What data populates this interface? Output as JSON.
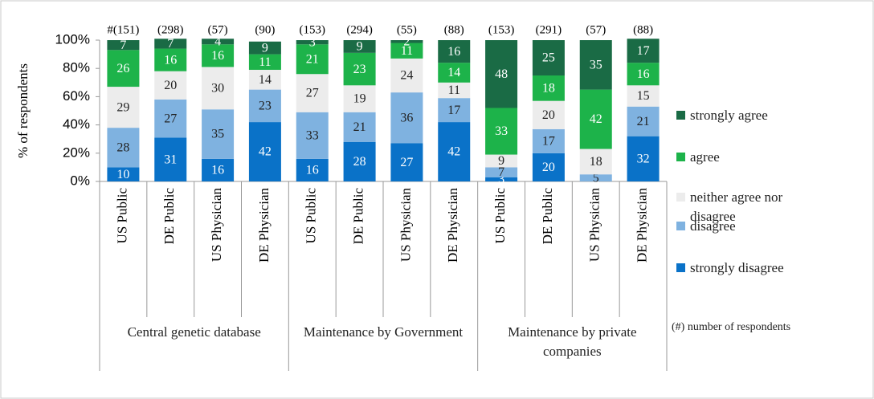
{
  "chart_data": {
    "type": "stacked_bar",
    "y_label": "% of respondents",
    "note": "(#) number of respondents",
    "categories": [
      "US Public",
      "DE Public",
      "US Physician",
      "DE Physician",
      "US Public",
      "DE Public",
      "US Physician",
      "DE Physician",
      "US Public",
      "DE Public",
      "US Physician",
      "DE Physician"
    ],
    "groups": [
      "Central genetic database",
      "Maintenance by Government",
      "Maintenance by private companies"
    ],
    "n_labels": [
      "#(151)",
      "(298)",
      "(57)",
      "(90)",
      "(153)",
      "(294)",
      "(55)",
      "(88)",
      "(153)",
      "(291)",
      "(57)",
      "(88)"
    ],
    "series": [
      {
        "name": "strongly disagree",
        "color": "#0a72c8",
        "values": [
          10,
          31,
          16,
          42,
          16,
          28,
          27,
          42,
          3,
          20,
          0,
          32
        ]
      },
      {
        "name": "disagree",
        "color": "#7fb2e0",
        "values": [
          28,
          27,
          35,
          23,
          33,
          21,
          36,
          17,
          7,
          17,
          5,
          21
        ]
      },
      {
        "name": "neither agree nor disagree",
        "color": "#ececec",
        "values": [
          29,
          20,
          30,
          14,
          27,
          19,
          24,
          11,
          9,
          20,
          18,
          15
        ]
      },
      {
        "name": "agree",
        "color": "#1db34a",
        "values": [
          26,
          16,
          16,
          11,
          21,
          23,
          11,
          14,
          33,
          18,
          42,
          16
        ]
      },
      {
        "name": "strongly agree",
        "color": "#1a6b45",
        "values": [
          7,
          7,
          4,
          9,
          3,
          9,
          2,
          16,
          48,
          25,
          35,
          17
        ]
      }
    ],
    "ylim": [
      0,
      100
    ],
    "yticks": [
      {
        "value": 0,
        "label": "0%"
      },
      {
        "value": 20,
        "label": "20%"
      },
      {
        "value": 40,
        "label": "40%"
      },
      {
        "value": 60,
        "label": "60%"
      },
      {
        "value": 80,
        "label": "80%"
      },
      {
        "value": 100,
        "label": "100%"
      }
    ]
  }
}
